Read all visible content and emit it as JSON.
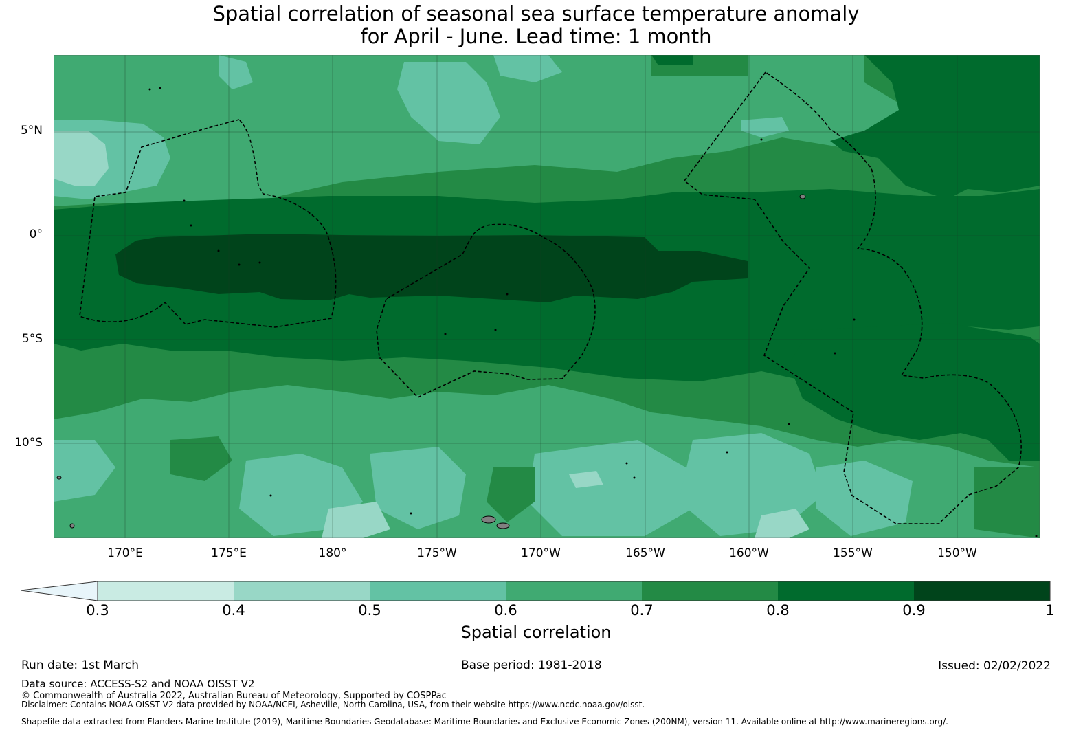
{
  "title_line1": "Spatial correlation of seasonal sea surface temperature anomaly",
  "title_line2": "for April - June. Lead time: 1 month",
  "map": {
    "lat_labels": [
      "5°N",
      "0°",
      "5°S",
      "10°S"
    ],
    "lon_labels": [
      "170°E",
      "175°E",
      "180°",
      "175°W",
      "170°W",
      "165°W",
      "160°W",
      "155°W",
      "150°W"
    ],
    "eez_line_color": "#000000",
    "land_color": "#808080"
  },
  "colorbar": {
    "label": "Spatial correlation",
    "ticks": [
      "0.3",
      "0.4",
      "0.5",
      "0.6",
      "0.7",
      "0.8",
      "0.9",
      "1"
    ],
    "bins": [
      {
        "range": "<0.3",
        "color": "#e8f5fa"
      },
      {
        "range": "0.3-0.4",
        "color": "#c9ebe3"
      },
      {
        "range": "0.4-0.5",
        "color": "#98d7c6"
      },
      {
        "range": "0.5-0.6",
        "color": "#63c2a4"
      },
      {
        "range": "0.6-0.7",
        "color": "#40aa72"
      },
      {
        "range": "0.7-0.8",
        "color": "#238a45"
      },
      {
        "range": "0.8-0.9",
        "color": "#006b2d"
      },
      {
        "range": "0.9-1",
        "color": "#00441b"
      }
    ]
  },
  "footer": {
    "run_date": "Run date: 1st March",
    "base_period": "Base period: 1981-2018",
    "issued": "Issued: 02/02/2022",
    "data_source": "Data source: ACCESS-S2 and NOAA OISST V2",
    "copyright": "© Commonwealth of Australia 2022, Australian Bureau of Meteorology, Supported by COSPPac",
    "disclaimer": "Disclaimer: Contains NOAA OISST V2 data provided by NOAA/NCEI, Asheville, North Carolina, USA, from their website https://www.ncdc.noaa.gov/oisst.",
    "shapefile": "Shapefile data extracted from Flanders Marine Institute (2019), Maritime Boundaries Geodatabase: Maritime Boundaries and Exclusive Economic Zones (200NM), version 11. Available online at http://www.marineregions.org/."
  }
}
